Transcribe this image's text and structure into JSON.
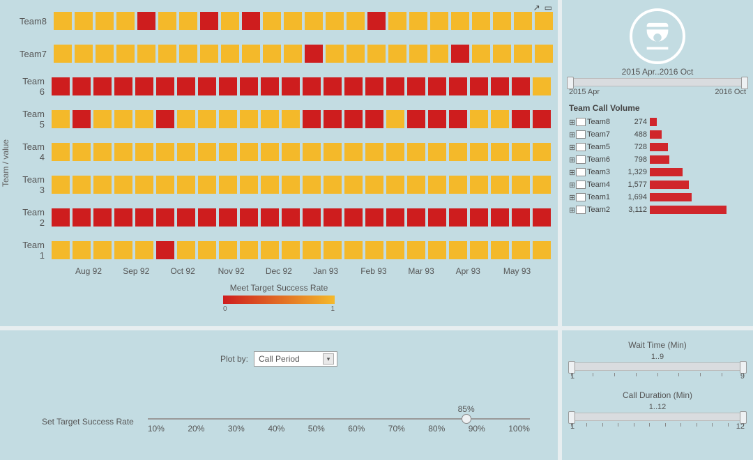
{
  "heatmap": {
    "y_axis_label": "Team / value",
    "legend_title": "Meet Target Success Rate",
    "legend_min": "0",
    "legend_max": "1",
    "gradient_start": "#ce1d1e",
    "gradient_end": "#f4b92a",
    "x_ticks": [
      "Aug 92",
      "Sep 92",
      "Oct 92",
      "Nov 92",
      "Dec 92",
      "Jan 93",
      "Feb 93",
      "Mar 93",
      "Apr 93",
      "May 93"
    ],
    "color_fail": "#ce1d1e",
    "color_pass": "#f4b92a",
    "rows": [
      {
        "label": "Team8",
        "cells": [
          1,
          1,
          1,
          1,
          0,
          1,
          1,
          0,
          1,
          0,
          1,
          1,
          1,
          1,
          1,
          0,
          1,
          1,
          1,
          1,
          1,
          1,
          1,
          1
        ]
      },
      {
        "label": "Team7",
        "cells": [
          1,
          1,
          1,
          1,
          1,
          1,
          1,
          1,
          1,
          1,
          1,
          1,
          0,
          1,
          1,
          1,
          1,
          1,
          1,
          0,
          1,
          1,
          1,
          1
        ]
      },
      {
        "label": "Team 6",
        "cells": [
          0,
          0,
          0,
          0,
          0,
          0,
          0,
          0,
          0,
          0,
          0,
          0,
          0,
          0,
          0,
          0,
          0,
          0,
          0,
          0,
          0,
          0,
          0,
          1
        ]
      },
      {
        "label": "Team 5",
        "cells": [
          1,
          0,
          1,
          1,
          1,
          0,
          1,
          1,
          1,
          1,
          1,
          1,
          0,
          0,
          0,
          0,
          1,
          0,
          0,
          0,
          1,
          1,
          0,
          0
        ]
      },
      {
        "label": "Team 4",
        "cells": [
          1,
          1,
          1,
          1,
          1,
          1,
          1,
          1,
          1,
          1,
          1,
          1,
          1,
          1,
          1,
          1,
          1,
          1,
          1,
          1,
          1,
          1,
          1,
          1
        ]
      },
      {
        "label": "Team 3",
        "cells": [
          1,
          1,
          1,
          1,
          1,
          1,
          1,
          1,
          1,
          1,
          1,
          1,
          1,
          1,
          1,
          1,
          1,
          1,
          1,
          1,
          1,
          1,
          1,
          1
        ]
      },
      {
        "label": "Team 2",
        "cells": [
          0,
          0,
          0,
          0,
          0,
          0,
          0,
          0,
          0,
          0,
          0,
          0,
          0,
          0,
          0,
          0,
          0,
          0,
          0,
          0,
          0,
          0,
          0,
          0
        ]
      },
      {
        "label": "Team 1",
        "cells": [
          1,
          1,
          1,
          1,
          1,
          0,
          1,
          1,
          1,
          1,
          1,
          1,
          1,
          1,
          1,
          1,
          1,
          1,
          1,
          1,
          1,
          1,
          1,
          1
        ]
      }
    ]
  },
  "date_slider": {
    "range_label": "2015 Apr..2016 Oct",
    "start_label": "2015 Apr",
    "end_label": "2016 Oct"
  },
  "bar_chart": {
    "title": "Team Call Volume",
    "max_value": 3112,
    "bar_color": "#d0262b",
    "rows": [
      {
        "name": "Team8",
        "value": 274
      },
      {
        "name": "Team7",
        "value": 488
      },
      {
        "name": "Team5",
        "value": 728
      },
      {
        "name": "Team6",
        "value": 798
      },
      {
        "name": "Team3",
        "value": 1329
      },
      {
        "name": "Team4",
        "value": 1577
      },
      {
        "name": "Team1",
        "value": 1694
      },
      {
        "name": "Team2",
        "value": 3112
      }
    ]
  },
  "plot_by": {
    "label": "Plot by:",
    "selected": "Call Period"
  },
  "target_slider": {
    "label": "Set Target Success Rate",
    "value_label": "85%",
    "value_pct": 85,
    "ticks": [
      "10%",
      "20%",
      "30%",
      "40%",
      "50%",
      "60%",
      "70%",
      "80%",
      "90%",
      "100%"
    ]
  },
  "wait_time": {
    "title": "Wait Time (Min)",
    "range_label": "1..9",
    "min_label": "1",
    "max_label": "9"
  },
  "call_duration": {
    "title": "Call Duration (Min)",
    "range_label": "1..12",
    "min_label": "1",
    "max_label": "12"
  }
}
